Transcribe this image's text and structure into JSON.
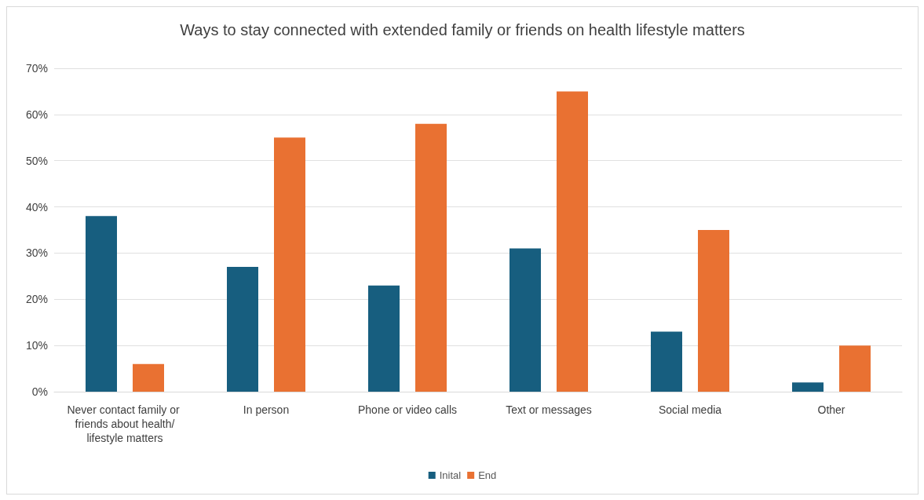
{
  "chart_data": {
    "type": "bar",
    "title": "Ways to stay connected with extended family or friends on health lifestyle matters",
    "categories": [
      "Never contact family or friends about health/lifestyle matters",
      "In person",
      "Phone or video calls",
      "Text or messages",
      "Social media",
      "Other"
    ],
    "series": [
      {
        "name": "Inital",
        "color": "#175e7f",
        "values": [
          38,
          27,
          23,
          31,
          13,
          2
        ]
      },
      {
        "name": "End",
        "color": "#e97132",
        "values": [
          6,
          55,
          58,
          65,
          35,
          10
        ]
      }
    ],
    "ylim": [
      0,
      70
    ],
    "yticks": [
      {
        "value": 0,
        "label": "0%"
      },
      {
        "value": 10,
        "label": "10%"
      },
      {
        "value": 20,
        "label": "20%"
      },
      {
        "value": 30,
        "label": "30%"
      },
      {
        "value": 40,
        "label": "40%"
      },
      {
        "value": 50,
        "label": "50%"
      },
      {
        "value": 60,
        "label": "60%"
      },
      {
        "value": 70,
        "label": "70%"
      }
    ],
    "grid": "y",
    "legend": "bottom"
  }
}
